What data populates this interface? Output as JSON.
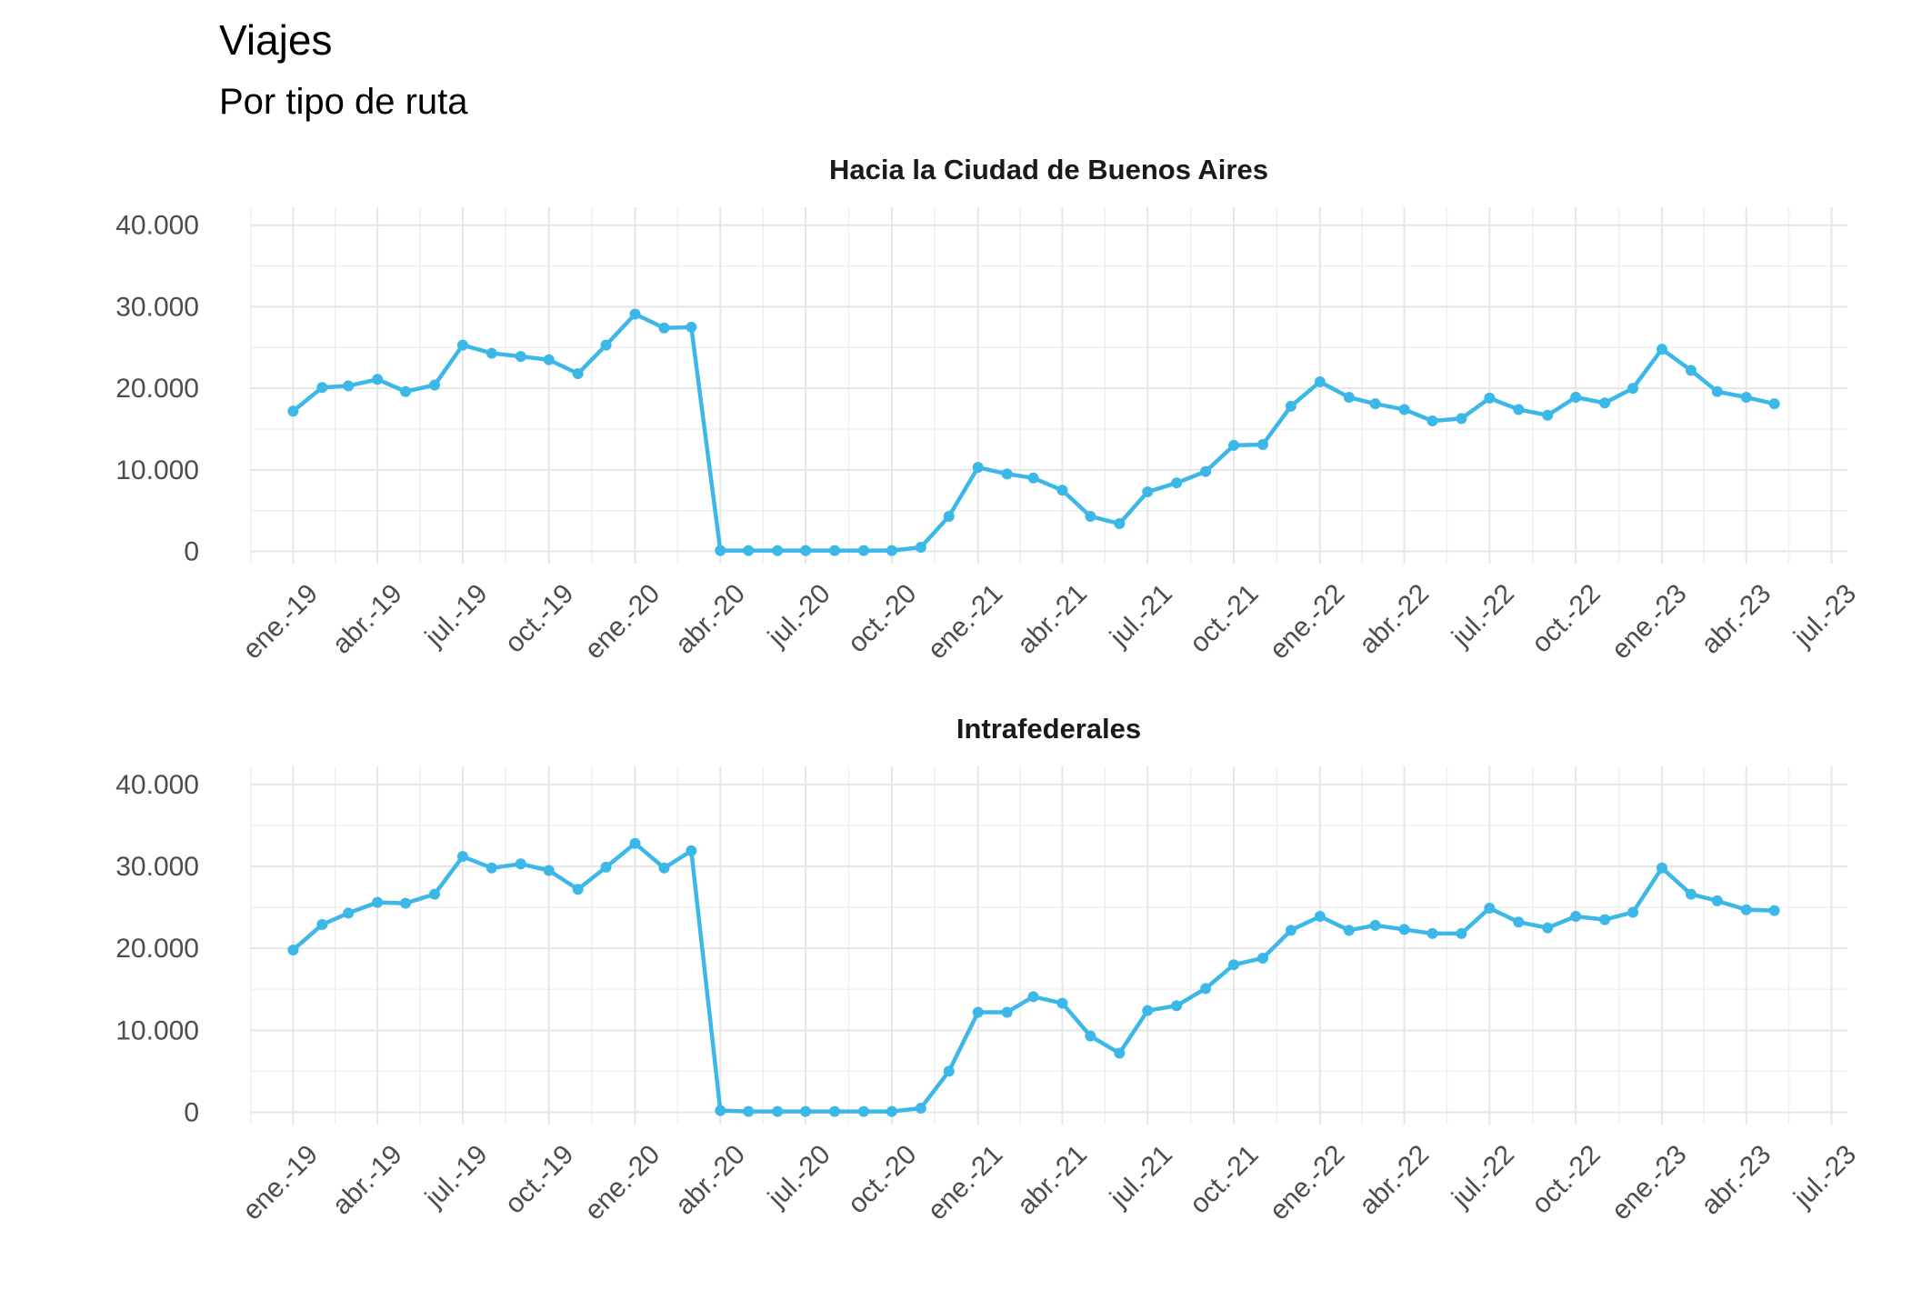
{
  "title": "Viajes",
  "subtitle": "Por tipo de ruta",
  "chart_data": [
    {
      "type": "line",
      "title": "Hacia la Ciudad de Buenos Aires",
      "x": [
        "2019-01",
        "2019-02",
        "2019-03",
        "2019-04",
        "2019-05",
        "2019-06",
        "2019-07",
        "2019-08",
        "2019-09",
        "2019-10",
        "2019-11",
        "2019-12",
        "2020-01",
        "2020-02",
        "2020-03",
        "2020-04",
        "2020-05",
        "2020-06",
        "2020-07",
        "2020-08",
        "2020-09",
        "2020-10",
        "2020-11",
        "2020-12",
        "2021-01",
        "2021-02",
        "2021-03",
        "2021-04",
        "2021-05",
        "2021-06",
        "2021-07",
        "2021-08",
        "2021-09",
        "2021-10",
        "2021-11",
        "2021-12",
        "2022-01",
        "2022-02",
        "2022-03",
        "2022-04",
        "2022-05",
        "2022-06",
        "2022-07",
        "2022-08",
        "2022-09",
        "2022-10",
        "2022-11",
        "2022-12",
        "2023-01",
        "2023-02",
        "2023-03",
        "2023-04",
        "2023-05"
      ],
      "series": [
        {
          "color": "#3bb7e8",
          "values": [
            17200,
            20100,
            20300,
            21100,
            19600,
            20400,
            25300,
            24300,
            23900,
            23500,
            21800,
            25300,
            29100,
            27400,
            27500,
            100,
            100,
            100,
            100,
            100,
            100,
            100,
            500,
            4300,
            10300,
            9500,
            9000,
            7500,
            4300,
            3400,
            7300,
            8400,
            9800,
            13000,
            13100,
            17800,
            20800,
            18900,
            18100,
            17400,
            16000,
            16300,
            18800,
            17400,
            16700,
            18900,
            18200,
            20000,
            24800,
            22200,
            19600,
            18900,
            18100
          ]
        }
      ],
      "xlim": [
        "2018-11-16",
        "2023-07-18"
      ],
      "xticks": [
        {
          "value": "2019-01",
          "label": "ene.-19"
        },
        {
          "value": "2019-04",
          "label": "abr.-19"
        },
        {
          "value": "2019-07",
          "label": "jul.-19"
        },
        {
          "value": "2019-10",
          "label": "oct.-19"
        },
        {
          "value": "2020-01",
          "label": "ene.-20"
        },
        {
          "value": "2020-04",
          "label": "abr.-20"
        },
        {
          "value": "2020-07",
          "label": "jul.-20"
        },
        {
          "value": "2020-10",
          "label": "oct.-20"
        },
        {
          "value": "2021-01",
          "label": "ene.-21"
        },
        {
          "value": "2021-04",
          "label": "abr.-21"
        },
        {
          "value": "2021-07",
          "label": "jul.-21"
        },
        {
          "value": "2021-10",
          "label": "oct.-21"
        },
        {
          "value": "2022-01",
          "label": "ene.-22"
        },
        {
          "value": "2022-04",
          "label": "abr.-22"
        },
        {
          "value": "2022-07",
          "label": "jul.-22"
        },
        {
          "value": "2022-10",
          "label": "oct.-22"
        },
        {
          "value": "2023-01",
          "label": "ene.-23"
        },
        {
          "value": "2023-04",
          "label": "abr.-23"
        },
        {
          "value": "2023-07",
          "label": "jul.-23"
        }
      ],
      "ylim": [
        -1500,
        42200
      ],
      "yticks": [
        0,
        {
          "value": 10000,
          "label": "10.000"
        },
        {
          "value": 20000,
          "label": "20.000"
        },
        {
          "value": 30000,
          "label": "30.000"
        },
        {
          "value": 40000,
          "label": "40.000"
        }
      ],
      "grid": true
    },
    {
      "type": "line",
      "title": "Intrafederales",
      "x": [
        "2019-01",
        "2019-02",
        "2019-03",
        "2019-04",
        "2019-05",
        "2019-06",
        "2019-07",
        "2019-08",
        "2019-09",
        "2019-10",
        "2019-11",
        "2019-12",
        "2020-01",
        "2020-02",
        "2020-03",
        "2020-04",
        "2020-05",
        "2020-06",
        "2020-07",
        "2020-08",
        "2020-09",
        "2020-10",
        "2020-11",
        "2020-12",
        "2021-01",
        "2021-02",
        "2021-03",
        "2021-04",
        "2021-05",
        "2021-06",
        "2021-07",
        "2021-08",
        "2021-09",
        "2021-10",
        "2021-11",
        "2021-12",
        "2022-01",
        "2022-02",
        "2022-03",
        "2022-04",
        "2022-05",
        "2022-06",
        "2022-07",
        "2022-08",
        "2022-09",
        "2022-10",
        "2022-11",
        "2022-12",
        "2023-01",
        "2023-02",
        "2023-03",
        "2023-04",
        "2023-05"
      ],
      "series": [
        {
          "color": "#3bb7e8",
          "values": [
            19800,
            22900,
            24300,
            25600,
            25500,
            26600,
            31200,
            29800,
            30300,
            29500,
            27200,
            29900,
            32800,
            29800,
            31900,
            200,
            100,
            100,
            100,
            100,
            100,
            100,
            500,
            5000,
            12200,
            12200,
            14100,
            13300,
            9300,
            7200,
            12400,
            13000,
            15100,
            18000,
            18800,
            22200,
            23900,
            22200,
            22800,
            22300,
            21800,
            21800,
            24900,
            23200,
            22500,
            23900,
            23500,
            24400,
            29800,
            26600,
            25800,
            24700,
            24600
          ]
        }
      ],
      "xlim": [
        "2018-11-16",
        "2023-07-18"
      ],
      "xticks": [
        {
          "value": "2019-01",
          "label": "ene.-19"
        },
        {
          "value": "2019-04",
          "label": "abr.-19"
        },
        {
          "value": "2019-07",
          "label": "jul.-19"
        },
        {
          "value": "2019-10",
          "label": "oct.-19"
        },
        {
          "value": "2020-01",
          "label": "ene.-20"
        },
        {
          "value": "2020-04",
          "label": "abr.-20"
        },
        {
          "value": "2020-07",
          "label": "jul.-20"
        },
        {
          "value": "2020-10",
          "label": "oct.-20"
        },
        {
          "value": "2021-01",
          "label": "ene.-21"
        },
        {
          "value": "2021-04",
          "label": "abr.-21"
        },
        {
          "value": "2021-07",
          "label": "jul.-21"
        },
        {
          "value": "2021-10",
          "label": "oct.-21"
        },
        {
          "value": "2022-01",
          "label": "ene.-22"
        },
        {
          "value": "2022-04",
          "label": "abr.-22"
        },
        {
          "value": "2022-07",
          "label": "jul.-22"
        },
        {
          "value": "2022-10",
          "label": "oct.-22"
        },
        {
          "value": "2023-01",
          "label": "ene.-23"
        },
        {
          "value": "2023-04",
          "label": "abr.-23"
        },
        {
          "value": "2023-07",
          "label": "jul.-23"
        }
      ],
      "ylim": [
        -1500,
        42200
      ],
      "yticks": [
        0,
        {
          "value": 10000,
          "label": "10.000"
        },
        {
          "value": 20000,
          "label": "20.000"
        },
        {
          "value": 30000,
          "label": "30.000"
        },
        {
          "value": 40000,
          "label": "40.000"
        }
      ],
      "grid": true
    }
  ]
}
